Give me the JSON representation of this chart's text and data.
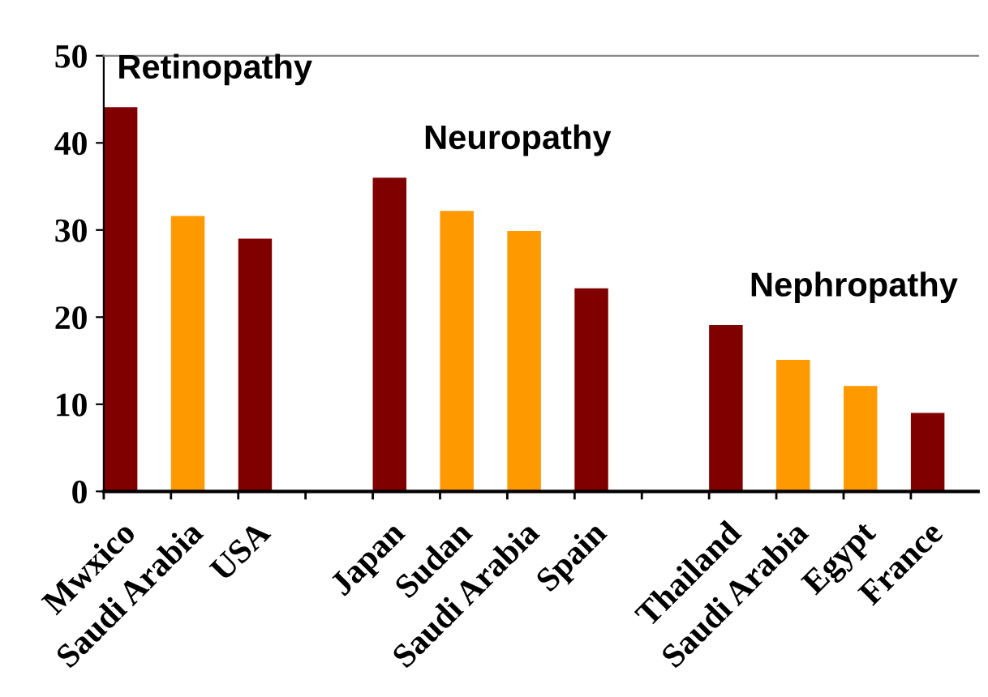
{
  "chart_data": {
    "type": "bar",
    "categories": [
      "Mwxico",
      "Saudi Arabia",
      "USA",
      null,
      "Japan",
      "Sudan",
      "Saudi Arabia",
      "Spain",
      null,
      "Thailand",
      "Saudi Arabia",
      "Egypt",
      "France"
    ],
    "values": [
      44.1,
      31.6,
      29.0,
      null,
      36.0,
      32.2,
      29.9,
      23.3,
      null,
      19.1,
      15.1,
      12.1,
      9.0
    ],
    "colors": [
      "#800000",
      "#ff9900",
      "#800000",
      null,
      "#800000",
      "#ff9900",
      "#ff9900",
      "#800000",
      null,
      "#800000",
      "#ff9900",
      "#ff9900",
      "#800000"
    ],
    "annotations": [
      "Retinopathy",
      "Neuropathy",
      "Nephropathy"
    ],
    "ylim": [
      0,
      50
    ],
    "yticks": [
      0,
      10,
      20,
      30,
      40,
      50
    ],
    "grid": false,
    "legend": false
  }
}
